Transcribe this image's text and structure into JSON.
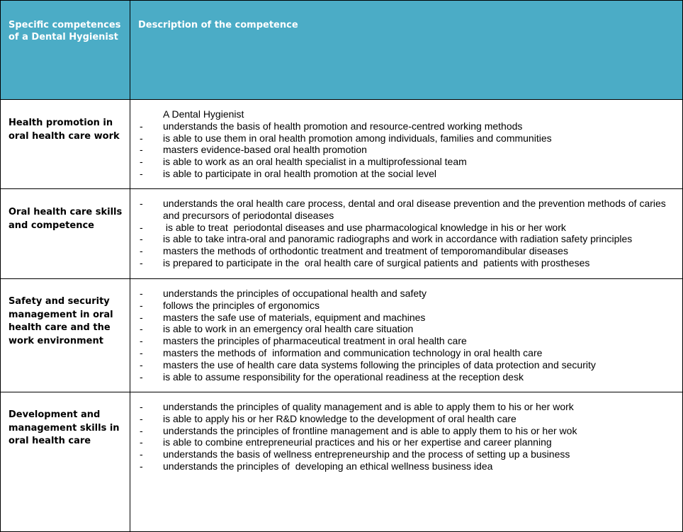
{
  "header": {
    "col1": "Specific competences of a Dental Hygienist",
    "col2": "Description of the competence"
  },
  "rows": [
    {
      "competence": "Health promotion in oral health care work",
      "intro": "A Dental Hygienist",
      "items": [
        "understands the basis of health promotion and resource-centred working methods",
        "is able to use them in oral health promotion among individuals, families and communities",
        "masters evidence-based oral health promotion",
        "is able to work as an oral health specialist in a multiprofessional team",
        "is able to participate in oral health promotion at the social level"
      ]
    },
    {
      "competence": "Oral health care skills and competence",
      "items": [
        "understands the oral health care process, dental and oral disease prevention and the prevention methods of caries and precursors of periodontal diseases",
        " is able to treat  periodontal diseases and use pharmacological knowledge in his or her work",
        "is able to take intra-oral and panoramic radiographs and work in accordance with radiation safety principles",
        "masters the methods of orthodontic treatment and treatment of temporomandibular diseases",
        "is prepared to participate in the  oral health care of surgical patients and  patients with prostheses"
      ]
    },
    {
      "competence": "Safety and security management in oral health care and the work environment",
      "items": [
        "understands the principles of occupational health and safety",
        "follows the principles of ergonomics",
        "masters the safe use of materials, equipment and machines",
        "is able to work in an emergency oral health care situation",
        "masters the principles of pharmaceutical treatment in oral health care",
        "masters the methods of  information and communication technology in oral health care",
        "masters the use of health care data systems following the principles of data protection and security",
        "is able to assume responsibility for the operational readiness at the reception desk"
      ]
    },
    {
      "competence": "Development and management skills in oral health care",
      "items": [
        "understands the principles of quality management and is able to apply them to his or her work",
        "is able to apply his or her R&D knowledge to the development of oral health care",
        "understands the principles of frontline management and is able to apply them to his or her wok",
        "is able to combine entrepreneurial practices and his or her expertise and career planning",
        "understands the basis of wellness entrepreneurship and the process of setting up a business",
        "understands the principles of  developing an ethical wellness business idea"
      ]
    }
  ],
  "bullet": "-",
  "header_color": "#4BACC6"
}
